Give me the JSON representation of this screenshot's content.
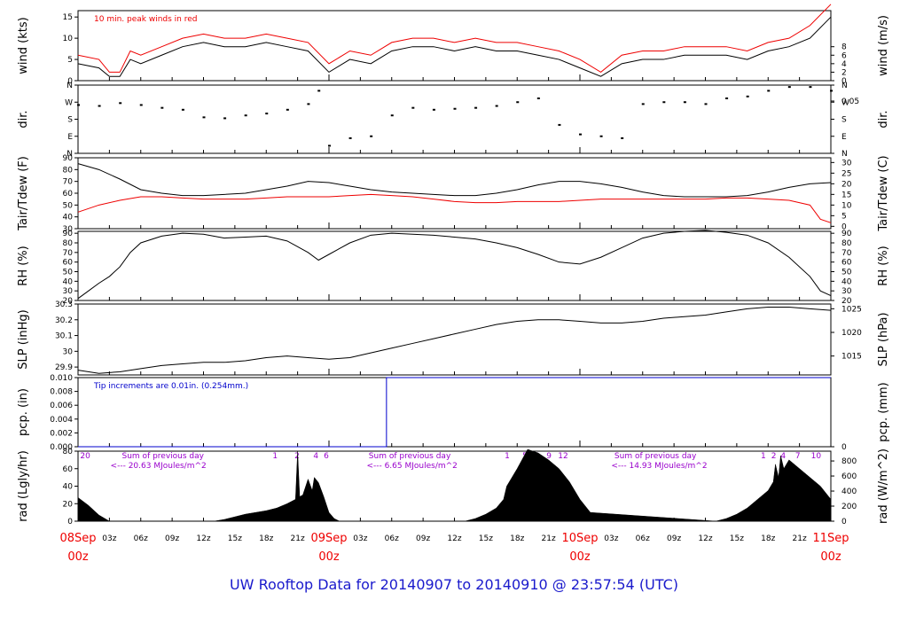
{
  "title": "UW Rooftop Data for 20140907  to  20140910 @ 23:57:54  (UTC)",
  "colors": {
    "primary": "#000000",
    "red": "#ee0000",
    "blue": "#0000cc",
    "purple": "#9900cc",
    "title": "#1a1acc"
  },
  "chart_data": [
    {
      "type": "line",
      "ylabel": "wind (kts)",
      "ylabel_right": "wind (m/s)",
      "ylim": [
        0,
        16.5
      ],
      "yticks": [
        0,
        5,
        10,
        15
      ],
      "yticks_right": [
        "0",
        "2",
        "4",
        "6",
        "8"
      ],
      "yticks_right_values": [
        0,
        2,
        4,
        6,
        8
      ],
      "right_factor": 1.944,
      "annotation": "10 min. peak winds in red",
      "series": [
        {
          "color": "#000000",
          "x_hours": [
            0,
            2,
            3,
            4,
            5,
            6,
            8,
            10,
            12,
            14,
            16,
            18,
            20,
            22,
            24,
            26,
            28,
            30,
            32,
            34,
            36,
            38,
            40,
            42,
            44,
            46,
            48,
            50,
            52,
            54,
            56,
            58,
            60,
            62,
            64,
            66,
            68,
            70,
            72
          ],
          "values": [
            4,
            3,
            1,
            1,
            5,
            4,
            6,
            8,
            9,
            8,
            8,
            9,
            8,
            7,
            2,
            5,
            4,
            7,
            8,
            8,
            7,
            8,
            7,
            7,
            6,
            5,
            3,
            1,
            4,
            5,
            5,
            6,
            6,
            6,
            5,
            7,
            8,
            10,
            15
          ]
        },
        {
          "color": "#ee0000",
          "x_hours": [
            0,
            2,
            3,
            4,
            5,
            6,
            8,
            10,
            12,
            14,
            16,
            18,
            20,
            22,
            24,
            26,
            28,
            30,
            32,
            34,
            36,
            38,
            40,
            42,
            44,
            46,
            48,
            50,
            52,
            54,
            56,
            58,
            60,
            62,
            64,
            66,
            68,
            70,
            72
          ],
          "values": [
            6,
            5,
            2,
            2,
            7,
            6,
            8,
            10,
            11,
            10,
            10,
            11,
            10,
            9,
            4,
            7,
            6,
            9,
            10,
            10,
            9,
            10,
            9,
            9,
            8,
            7,
            5,
            2,
            6,
            7,
            7,
            8,
            8,
            8,
            7,
            9,
            10,
            13,
            18
          ]
        }
      ]
    },
    {
      "type": "scatter",
      "ylabel": "dir.",
      "ylabel_right": "dir.",
      "yticks": [
        "N",
        "W",
        "S",
        "E",
        "N"
      ],
      "yticks_values": [
        360,
        270,
        180,
        90,
        0
      ],
      "ylim": [
        0,
        360
      ],
      "series": [
        {
          "color": "#000000",
          "x_hours": [
            0,
            2,
            4,
            6,
            8,
            10,
            12,
            14,
            16,
            18,
            20,
            22,
            23,
            24,
            26,
            28,
            30,
            32,
            34,
            36,
            38,
            40,
            42,
            44,
            46,
            48,
            50,
            52,
            54,
            56,
            58,
            60,
            62,
            64,
            66,
            68,
            70,
            72
          ],
          "values": [
            255,
            250,
            265,
            255,
            240,
            230,
            190,
            185,
            200,
            210,
            230,
            260,
            330,
            40,
            80,
            90,
            200,
            240,
            230,
            235,
            240,
            250,
            270,
            290,
            150,
            100,
            90,
            80,
            260,
            270,
            270,
            260,
            290,
            300,
            330,
            350,
            350,
            330
          ]
        }
      ]
    },
    {
      "type": "line",
      "ylabel": "Tair/Tdew (F)",
      "ylabel_right": "Tair/Tdew (C)",
      "ylim": [
        30,
        90
      ],
      "yticks": [
        30,
        40,
        50,
        60,
        70,
        80,
        90
      ],
      "yticks_right": [
        "0",
        "5",
        "10",
        "15",
        "20",
        "25",
        "30"
      ],
      "yticks_right_values": [
        32,
        41,
        50,
        59,
        68,
        77,
        86
      ],
      "series": [
        {
          "name": "Tair",
          "color": "#000000",
          "x_hours": [
            0,
            2,
            4,
            6,
            8,
            10,
            12,
            14,
            16,
            18,
            20,
            22,
            24,
            26,
            28,
            30,
            32,
            34,
            36,
            38,
            40,
            42,
            44,
            46,
            48,
            50,
            52,
            54,
            56,
            58,
            60,
            62,
            64,
            66,
            68,
            70,
            72
          ],
          "values": [
            85,
            80,
            72,
            63,
            60,
            58,
            58,
            59,
            60,
            63,
            66,
            70,
            69,
            66,
            63,
            61,
            60,
            59,
            58,
            58,
            60,
            63,
            67,
            70,
            70,
            68,
            65,
            61,
            58,
            57,
            57,
            57,
            58,
            61,
            65,
            68,
            69
          ]
        },
        {
          "name": "Tdew",
          "color": "#ee0000",
          "x_hours": [
            0,
            2,
            4,
            6,
            8,
            10,
            12,
            14,
            16,
            18,
            20,
            22,
            24,
            26,
            28,
            30,
            32,
            34,
            36,
            38,
            40,
            42,
            44,
            46,
            48,
            50,
            52,
            54,
            56,
            58,
            60,
            62,
            64,
            66,
            68,
            70,
            71,
            72
          ],
          "values": [
            44,
            50,
            54,
            57,
            57,
            56,
            55,
            55,
            55,
            56,
            57,
            57,
            57,
            58,
            59,
            58,
            57,
            55,
            53,
            52,
            52,
            53,
            53,
            53,
            54,
            55,
            55,
            55,
            55,
            55,
            55,
            56,
            56,
            55,
            54,
            50,
            38,
            35
          ]
        }
      ]
    },
    {
      "type": "line",
      "ylabel": "RH (%)",
      "ylabel_right": "RH (%)",
      "ylim": [
        20,
        92
      ],
      "yticks": [
        20,
        30,
        40,
        50,
        60,
        70,
        80,
        90
      ],
      "series": [
        {
          "color": "#000000",
          "x_hours": [
            0,
            1,
            2,
            3,
            4,
            5,
            6,
            8,
            10,
            12,
            14,
            16,
            18,
            20,
            22,
            23,
            24,
            26,
            28,
            30,
            32,
            34,
            36,
            38,
            40,
            42,
            44,
            46,
            48,
            50,
            52,
            54,
            56,
            58,
            60,
            62,
            64,
            66,
            68,
            70,
            71,
            72
          ],
          "values": [
            22,
            30,
            38,
            45,
            55,
            70,
            80,
            87,
            90,
            89,
            85,
            86,
            87,
            82,
            70,
            62,
            68,
            80,
            88,
            90,
            89,
            88,
            86,
            84,
            80,
            75,
            68,
            60,
            58,
            65,
            75,
            85,
            90,
            92,
            93,
            91,
            88,
            80,
            65,
            45,
            30,
            25
          ]
        }
      ]
    },
    {
      "type": "line",
      "ylabel": "SLP (inHg)",
      "ylabel_right": "SLP (hPa)",
      "ylim": [
        29.85,
        30.3
      ],
      "yticks": [
        29.9,
        30.0,
        30.1,
        30.2,
        30.3
      ],
      "yticks_right": [
        "1015",
        "1020",
        "1025"
      ],
      "yticks_right_values": [
        29.97,
        30.12,
        30.27
      ],
      "series": [
        {
          "color": "#000000",
          "x_hours": [
            0,
            2,
            4,
            6,
            8,
            10,
            12,
            14,
            16,
            18,
            20,
            22,
            24,
            26,
            28,
            30,
            32,
            34,
            36,
            38,
            40,
            42,
            44,
            46,
            48,
            50,
            52,
            54,
            56,
            58,
            60,
            62,
            64,
            66,
            68,
            70,
            72
          ],
          "values": [
            29.88,
            29.86,
            29.87,
            29.89,
            29.91,
            29.92,
            29.93,
            29.93,
            29.94,
            29.96,
            29.97,
            29.96,
            29.95,
            29.96,
            29.99,
            30.02,
            30.05,
            30.08,
            30.11,
            30.14,
            30.17,
            30.19,
            30.2,
            30.2,
            30.19,
            30.18,
            30.18,
            30.19,
            30.21,
            30.22,
            30.23,
            30.25,
            30.27,
            30.28,
            30.28,
            30.27,
            30.26
          ]
        }
      ]
    },
    {
      "type": "line",
      "ylabel": "pcp. (in)",
      "ylabel_right": "pcp. (mm)",
      "ylim": [
        0,
        0.01
      ],
      "yticks": [
        "0.000",
        "0.002",
        "0.004",
        "0.006",
        "0.008",
        "0.010"
      ],
      "yticks_values": [
        0,
        0.002,
        0.004,
        0.006,
        0.008,
        0.01
      ],
      "yticks_right": [
        "0",
        "0.05",
        "0.1",
        "0.15",
        "0.2",
        "0.25"
      ],
      "yticks_right_values": [
        0,
        0.05,
        0.1,
        0.15,
        0.2,
        0.25
      ],
      "annotation": "Tip increments are 0.01in. (0.254mm.)",
      "series": [
        {
          "color": "#0000cc",
          "x_hours": [
            0,
            29.5,
            29.5,
            72
          ],
          "values": [
            0,
            0,
            0.01,
            0.01
          ]
        }
      ]
    },
    {
      "type": "area",
      "ylabel": "rad (Lgly/hr)",
      "ylabel_right": "rad (W/m^2)",
      "ylim": [
        0,
        80
      ],
      "yticks": [
        0,
        20,
        40,
        60,
        80
      ],
      "yticks_right": [
        "0",
        "200",
        "400",
        "600",
        "800"
      ],
      "yticks_right_values": [
        0,
        17.2,
        34.4,
        51.6,
        68.8
      ],
      "annotations": [
        {
          "text": "Sum of previous day",
          "x_hours": 4.2,
          "row": 1
        },
        {
          "text": "<--- 20.63 MJoules/m^2",
          "x_hours": 3.1,
          "row": 2
        },
        {
          "text": "Sum of previous day",
          "x_hours": 27.8,
          "row": 1
        },
        {
          "text": "<--- 6.65 MJoules/m^2",
          "x_hours": 27.6,
          "row": 2
        },
        {
          "text": "Sum of previous day",
          "x_hours": 51.3,
          "row": 1
        },
        {
          "text": "<--- 14.93 MJoules/m^2",
          "x_hours": 51.0,
          "row": 2
        }
      ],
      "hour_marks": [
        {
          "text": "20",
          "x_hours": 0.2
        },
        {
          "text": "1",
          "x_hours": 18.6
        },
        {
          "text": "2",
          "x_hours": 20.7
        },
        {
          "text": "4",
          "x_hours": 22.5
        },
        {
          "text": "6",
          "x_hours": 23.5
        },
        {
          "text": "1",
          "x_hours": 40.8
        },
        {
          "text": "5",
          "x_hours": 42.5
        },
        {
          "text": "6",
          "x_hours": 43.6
        },
        {
          "text": "9",
          "x_hours": 44.8
        },
        {
          "text": "12",
          "x_hours": 45.9
        },
        {
          "text": "1",
          "x_hours": 65.3
        },
        {
          "text": "2",
          "x_hours": 66.3
        },
        {
          "text": "4",
          "x_hours": 67.2
        },
        {
          "text": "7",
          "x_hours": 68.6
        },
        {
          "text": "10",
          "x_hours": 70.1
        }
      ],
      "series": [
        {
          "color": "#000000",
          "x_hours": [
            0,
            1,
            2,
            3,
            13,
            14,
            15,
            16,
            17,
            18,
            19,
            20,
            20.8,
            21,
            21.2,
            21.5,
            22,
            22.4,
            22.6,
            23,
            23.5,
            24,
            24.5,
            25,
            37,
            38,
            39,
            40,
            40.7,
            41,
            42,
            43,
            44,
            45,
            46,
            47,
            48,
            49,
            61,
            62,
            63,
            64,
            65,
            66,
            66.5,
            66.7,
            67,
            67.2,
            67.5,
            68,
            69,
            70,
            71,
            72
          ],
          "values": [
            27,
            18,
            7,
            0,
            0,
            2,
            5,
            8,
            10,
            12,
            15,
            20,
            25,
            80,
            28,
            30,
            48,
            35,
            50,
            44,
            28,
            10,
            3,
            0,
            0,
            3,
            8,
            15,
            25,
            40,
            60,
            82,
            78,
            70,
            60,
            45,
            25,
            10,
            0,
            3,
            8,
            15,
            25,
            35,
            45,
            65,
            50,
            75,
            60,
            70,
            60,
            50,
            40,
            25
          ]
        }
      ]
    }
  ],
  "x_axis": {
    "range_hours": [
      0,
      72
    ],
    "minor_ticks": [
      {
        "text": "03z",
        "x_hours": 3
      },
      {
        "text": "06z",
        "x_hours": 6
      },
      {
        "text": "09z",
        "x_hours": 9
      },
      {
        "text": "12z",
        "x_hours": 12
      },
      {
        "text": "15z",
        "x_hours": 15
      },
      {
        "text": "18z",
        "x_hours": 18
      },
      {
        "text": "21z",
        "x_hours": 21
      },
      {
        "text": "03z",
        "x_hours": 27
      },
      {
        "text": "06z",
        "x_hours": 30
      },
      {
        "text": "09z",
        "x_hours": 33
      },
      {
        "text": "12z",
        "x_hours": 36
      },
      {
        "text": "15z",
        "x_hours": 39
      },
      {
        "text": "18z",
        "x_hours": 42
      },
      {
        "text": "21z",
        "x_hours": 45
      },
      {
        "text": "03z",
        "x_hours": 51
      },
      {
        "text": "06z",
        "x_hours": 54
      },
      {
        "text": "09z",
        "x_hours": 57
      },
      {
        "text": "12z",
        "x_hours": 60
      },
      {
        "text": "15z",
        "x_hours": 63
      },
      {
        "text": "18z",
        "x_hours": 66
      },
      {
        "text": "21z",
        "x_hours": 69
      }
    ],
    "major_ticks": [
      {
        "date": "08Sep",
        "time": "00z",
        "x_hours": 0
      },
      {
        "date": "09Sep",
        "time": "00z",
        "x_hours": 24
      },
      {
        "date": "10Sep",
        "time": "00z",
        "x_hours": 48
      },
      {
        "date": "11Sep",
        "time": "00z",
        "x_hours": 72
      }
    ]
  }
}
